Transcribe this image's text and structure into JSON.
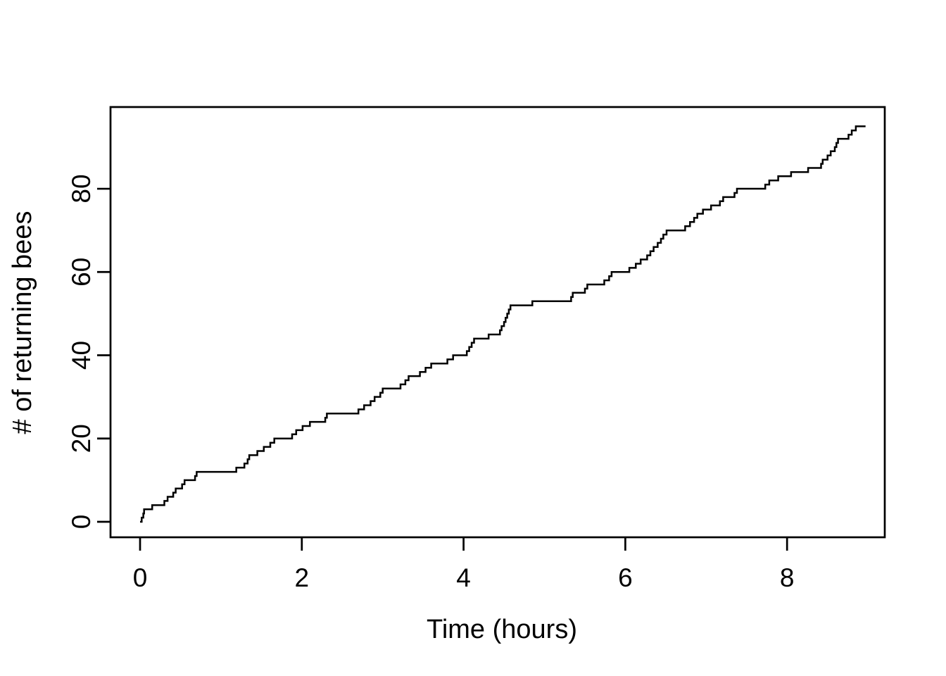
{
  "figure": {
    "background_color": "#ffffff",
    "line_color": "#000000",
    "title": ""
  },
  "chart_data": {
    "type": "line",
    "subtype": "step-cumulative-count",
    "title": "",
    "xlabel": "Time (hours)",
    "ylabel": "# of returning bees",
    "x_ticks": [
      0,
      2,
      4,
      6,
      8
    ],
    "y_ticks": [
      0,
      20,
      40,
      60,
      80
    ],
    "xlim": [
      -0.37,
      9.21
    ],
    "ylim": [
      -3.8,
      99.7
    ],
    "grid": false,
    "legend": "none",
    "series": [
      {
        "name": "cumulative returning bees",
        "style": "step",
        "color": "#000000",
        "start_point": {
          "t": 0,
          "count": 0
        },
        "end_time": 8.97,
        "final_count": 95,
        "event_times_hours": [
          0.02,
          0.04,
          0.05,
          0.15,
          0.3,
          0.34,
          0.41,
          0.44,
          0.52,
          0.55,
          0.68,
          0.7,
          1.19,
          1.29,
          1.33,
          1.35,
          1.45,
          1.53,
          1.61,
          1.66,
          1.88,
          1.93,
          2.01,
          2.1,
          2.29,
          2.31,
          2.7,
          2.77,
          2.85,
          2.9,
          2.97,
          3.0,
          3.22,
          3.28,
          3.32,
          3.46,
          3.53,
          3.6,
          3.8,
          3.87,
          4.04,
          4.07,
          4.1,
          4.13,
          4.31,
          4.45,
          4.47,
          4.5,
          4.52,
          4.54,
          4.56,
          4.58,
          4.85,
          5.33,
          5.35,
          5.5,
          5.53,
          5.74,
          5.8,
          5.83,
          6.05,
          6.13,
          6.19,
          6.27,
          6.31,
          6.35,
          6.4,
          6.44,
          6.47,
          6.51,
          6.74,
          6.8,
          6.85,
          6.89,
          6.96,
          7.06,
          7.17,
          7.21,
          7.35,
          7.38,
          7.73,
          7.78,
          7.89,
          8.05,
          8.26,
          8.42,
          8.44,
          8.5,
          8.54,
          8.59,
          8.61,
          8.63,
          8.76,
          8.8,
          8.85
        ],
        "counts": [
          1,
          2,
          3,
          4,
          5,
          6,
          7,
          8,
          9,
          10,
          11,
          12,
          13,
          14,
          15,
          16,
          17,
          18,
          19,
          20,
          21,
          22,
          23,
          24,
          25,
          26,
          27,
          28,
          29,
          30,
          31,
          32,
          33,
          34,
          35,
          36,
          37,
          38,
          39,
          40,
          41,
          42,
          43,
          44,
          45,
          46,
          47,
          48,
          49,
          50,
          51,
          52,
          53,
          54,
          55,
          56,
          57,
          58,
          59,
          60,
          61,
          62,
          63,
          64,
          65,
          66,
          67,
          68,
          69,
          70,
          71,
          72,
          73,
          74,
          75,
          76,
          77,
          78,
          79,
          80,
          81,
          82,
          83,
          84,
          85,
          86,
          87,
          88,
          89,
          90,
          91,
          92,
          93,
          94,
          95
        ]
      }
    ]
  }
}
